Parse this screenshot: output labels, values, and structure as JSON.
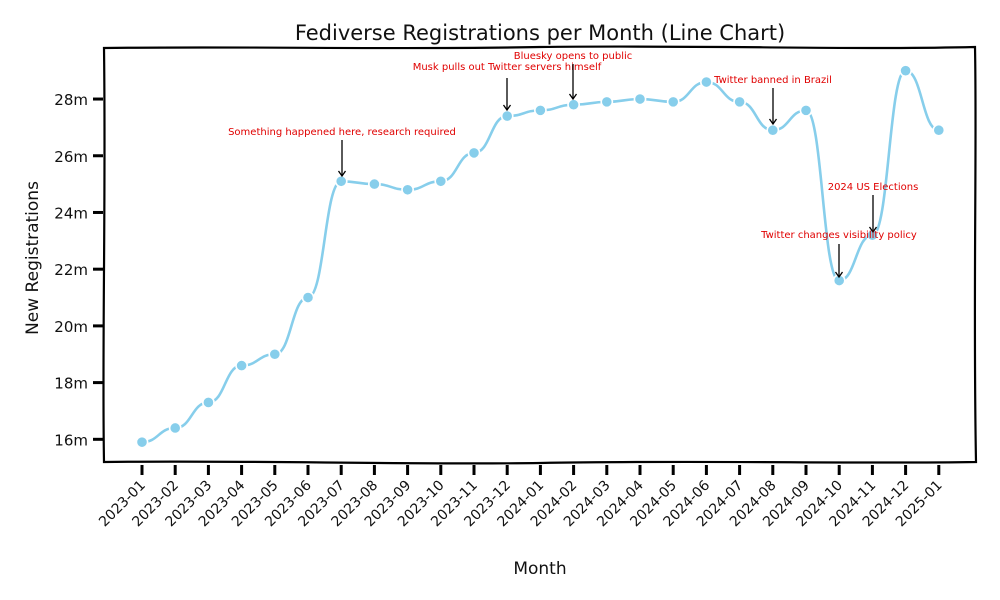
{
  "chart_data": {
    "type": "line",
    "title": "Fediverse Registrations per Month (Line Chart)",
    "xlabel": "Month",
    "ylabel": "New Registrations",
    "x": [
      "2023-01",
      "2023-02",
      "2023-03",
      "2023-04",
      "2023-05",
      "2023-06",
      "2023-07",
      "2023-08",
      "2023-09",
      "2023-10",
      "2023-11",
      "2023-12",
      "2024-01",
      "2024-02",
      "2024-03",
      "2024-04",
      "2024-05",
      "2024-06",
      "2024-07",
      "2024-08",
      "2024-09",
      "2024-10",
      "2024-11",
      "2024-12",
      "2025-01"
    ],
    "series": [
      {
        "values": [
          15.9,
          16.4,
          17.3,
          18.6,
          19.0,
          21.0,
          25.1,
          25.0,
          24.8,
          25.1,
          26.1,
          27.4,
          27.6,
          27.8,
          27.9,
          28.0,
          27.9,
          28.6,
          27.9,
          26.9,
          27.6,
          21.6,
          23.2,
          29.0,
          26.9
        ]
      }
    ],
    "y_ticks": [
      16,
      18,
      20,
      22,
      24,
      26,
      28
    ],
    "y_tick_labels": [
      "16m",
      "18m",
      "20m",
      "22m",
      "24m",
      "26m",
      "28m"
    ],
    "ylim": [
      15.2,
      29.8
    ],
    "grid": false,
    "colors": {
      "line": "#87ceeb",
      "annotation": "#e00000",
      "axis": "#000000"
    },
    "annotations": [
      {
        "text": "Something happened here, research required",
        "x": "2023-07"
      },
      {
        "text": "Musk pulls out Twitter servers himself",
        "x": "2023-12"
      },
      {
        "text": "Bluesky opens to public",
        "x": "2024-02"
      },
      {
        "text": "Twitter banned in Brazil",
        "x": "2024-08"
      },
      {
        "text": "2024 US Elections",
        "x": "2024-11"
      },
      {
        "text": "Twitter changes visibility policy",
        "x": "2024-10"
      }
    ]
  }
}
